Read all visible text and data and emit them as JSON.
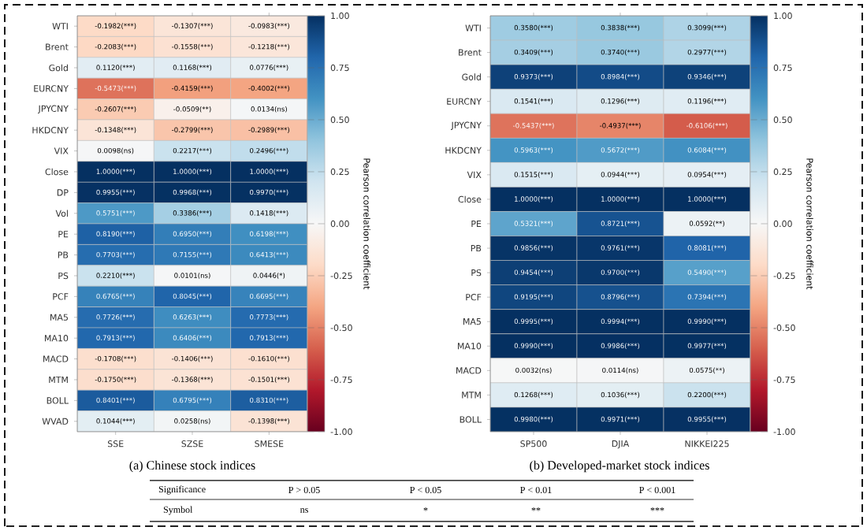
{
  "chart_data": [
    {
      "type": "heatmap",
      "categories": [
        "SSE",
        "SZSE",
        "SMESE"
      ],
      "y_categories": [
        "WTI",
        "Brent",
        "Gold",
        "EURCNY",
        "JPYCNY",
        "HKDCNY",
        "VIX",
        "Close",
        "DP",
        "Vol",
        "PE",
        "PB",
        "PS",
        "PCF",
        "MA5",
        "MA10",
        "MACD",
        "MTM",
        "BOLL",
        "WVAD"
      ],
      "cells": [
        [
          -0.1982,
          -0.1307,
          -0.0983
        ],
        [
          -0.2083,
          -0.1558,
          -0.1218
        ],
        [
          0.112,
          0.1168,
          0.0776
        ],
        [
          -0.5473,
          -0.4159,
          -0.4002
        ],
        [
          -0.2607,
          -0.0509,
          0.0134
        ],
        [
          -0.1348,
          -0.2799,
          -0.2989
        ],
        [
          0.0098,
          0.2217,
          0.2496
        ],
        [
          1.0,
          1.0,
          1.0
        ],
        [
          0.9955,
          0.9968,
          0.997
        ],
        [
          0.5751,
          0.3386,
          0.1418
        ],
        [
          0.819,
          0.695,
          0.6198
        ],
        [
          0.7703,
          0.7155,
          0.6413
        ],
        [
          0.221,
          0.0101,
          0.0446
        ],
        [
          0.6765,
          0.8045,
          0.6695
        ],
        [
          0.7726,
          0.6263,
          0.7773
        ],
        [
          0.7913,
          0.6406,
          0.7913
        ],
        [
          -0.1708,
          -0.1406,
          -0.161
        ],
        [
          -0.175,
          -0.1368,
          -0.1501
        ],
        [
          0.8401,
          0.6795,
          0.831
        ],
        [
          0.1044,
          0.0258,
          -0.1398
        ]
      ],
      "cell_labels": [
        [
          "-0.1982(***)",
          "-0.1307(***)",
          "-0.0983(***)"
        ],
        [
          "-0.2083(***)",
          "-0.1558(***)",
          "-0.1218(***)"
        ],
        [
          "0.1120(***)",
          "0.1168(***)",
          "0.0776(***)"
        ],
        [
          "-0.5473(***)",
          "-0.4159(***)",
          "-0.4002(***)"
        ],
        [
          "-0.2607(***)",
          "-0.0509(**)",
          "0.0134(ns)"
        ],
        [
          "-0.1348(***)",
          "-0.2799(***)",
          "-0.2989(***)"
        ],
        [
          "0.0098(ns)",
          "0.2217(***)",
          "0.2496(***)"
        ],
        [
          "1.0000(***)",
          "1.0000(***)",
          "1.0000(***)"
        ],
        [
          "0.9955(***)",
          "0.9968(***)",
          "0.9970(***)"
        ],
        [
          "0.5751(***)",
          "0.3386(***)",
          "0.1418(***)"
        ],
        [
          "0.8190(***)",
          "0.6950(***)",
          "0.6198(***)"
        ],
        [
          "0.7703(***)",
          "0.7155(***)",
          "0.6413(***)"
        ],
        [
          "0.2210(***)",
          "0.0101(ns)",
          "0.0446(*)"
        ],
        [
          "0.6765(***)",
          "0.8045(***)",
          "0.6695(***)"
        ],
        [
          "0.7726(***)",
          "0.6263(***)",
          "0.7773(***)"
        ],
        [
          "0.7913(***)",
          "0.6406(***)",
          "0.7913(***)"
        ],
        [
          "-0.1708(***)",
          "-0.1406(***)",
          "-0.1610(***)"
        ],
        [
          "-0.1750(***)",
          "-0.1368(***)",
          "-0.1501(***)"
        ],
        [
          "0.8401(***)",
          "0.6795(***)",
          "0.8310(***)"
        ],
        [
          "0.1044(***)",
          "0.0258(ns)",
          "-0.1398(***)"
        ]
      ],
      "clim": [
        -1,
        1
      ],
      "cticks": [
        {
          "value": -1,
          "label": "-1.00"
        },
        {
          "value": -0.75,
          "label": "-0.75"
        },
        {
          "value": -0.5,
          "label": "-0.50"
        },
        {
          "value": -0.25,
          "label": "-0.25"
        },
        {
          "value": 0,
          "label": "0.00"
        },
        {
          "value": 0.25,
          "label": "0.25"
        },
        {
          "value": 0.5,
          "label": "0.50"
        },
        {
          "value": 0.75,
          "label": "0.75"
        },
        {
          "value": 1,
          "label": "1.00"
        }
      ],
      "clabel": "Pearson correlation coefficient",
      "annotations": [
        "(a) Chinese stock indices"
      ]
    },
    {
      "type": "heatmap",
      "categories": [
        "SP500",
        "DJIA",
        "NIKKEI225"
      ],
      "y_categories": [
        "WTI",
        "Brent",
        "Gold",
        "EURCNY",
        "JPYCNY",
        "HKDCNY",
        "VIX",
        "Close",
        "PE",
        "PB",
        "PS",
        "PCF",
        "MA5",
        "MA10",
        "MACD",
        "MTM",
        "BOLL"
      ],
      "cells": [
        [
          0.358,
          0.3838,
          0.3099
        ],
        [
          0.3409,
          0.374,
          0.2977
        ],
        [
          0.9373,
          0.8984,
          0.9346
        ],
        [
          0.1541,
          0.1296,
          0.1196
        ],
        [
          -0.5437,
          -0.4937,
          -0.6106
        ],
        [
          0.5963,
          0.5672,
          0.6084
        ],
        [
          0.1515,
          0.0944,
          0.0954
        ],
        [
          1.0,
          1.0,
          1.0
        ],
        [
          0.5321,
          0.8721,
          0.0592
        ],
        [
          0.9856,
          0.9761,
          0.8081
        ],
        [
          0.9454,
          0.97,
          0.549
        ],
        [
          0.9195,
          0.8796,
          0.7394
        ],
        [
          0.9995,
          0.9994,
          0.999
        ],
        [
          0.999,
          0.9986,
          0.9977
        ],
        [
          0.0032,
          0.0114,
          0.0575
        ],
        [
          0.1268,
          0.1036,
          0.22
        ],
        [
          0.998,
          0.9971,
          0.9955
        ]
      ],
      "cell_labels": [
        [
          "0.3580(***)",
          "0.3838(***)",
          "0.3099(***)"
        ],
        [
          "0.3409(***)",
          "0.3740(***)",
          "0.2977(***)"
        ],
        [
          "0.9373(***)",
          "0.8984(***)",
          "0.9346(***)"
        ],
        [
          "0.1541(***)",
          "0.1296(***)",
          "0.1196(***)"
        ],
        [
          "-0.5437(***)",
          "-0.4937(***)",
          "-0.6106(***)"
        ],
        [
          "0.5963(***)",
          "0.5672(***)",
          "0.6084(***)"
        ],
        [
          "0.1515(***)",
          "0.0944(***)",
          "0.0954(***)"
        ],
        [
          "1.0000(***)",
          "1.0000(***)",
          "1.0000(***)"
        ],
        [
          "0.5321(***)",
          "0.8721(***)",
          "0.0592(**)"
        ],
        [
          "0.9856(***)",
          "0.9761(***)",
          "0.8081(***)"
        ],
        [
          "0.9454(***)",
          "0.9700(***)",
          "0.5490(***)"
        ],
        [
          "0.9195(***)",
          "0.8796(***)",
          "0.7394(***)"
        ],
        [
          "0.9995(***)",
          "0.9994(***)",
          "0.9990(***)"
        ],
        [
          "0.9990(***)",
          "0.9986(***)",
          "0.9977(***)"
        ],
        [
          "0.0032(ns)",
          "0.0114(ns)",
          "0.0575(**)"
        ],
        [
          "0.1268(***)",
          "0.1036(***)",
          "0.2200(***)"
        ],
        [
          "0.9980(***)",
          "0.9971(***)",
          "0.9955(***)"
        ]
      ],
      "clim": [
        -1,
        1
      ],
      "cticks": [
        {
          "value": -1,
          "label": "-1.00"
        },
        {
          "value": -0.75,
          "label": "-0.75"
        },
        {
          "value": -0.5,
          "label": "-0.50"
        },
        {
          "value": -0.25,
          "label": "-0.25"
        },
        {
          "value": 0,
          "label": "0.00"
        },
        {
          "value": 0.25,
          "label": "0.25"
        },
        {
          "value": 0.5,
          "label": "0.50"
        },
        {
          "value": 0.75,
          "label": "0.75"
        },
        {
          "value": 1,
          "label": "1.00"
        }
      ],
      "clabel": "Pearson correlation coefficient",
      "annotations": [
        "(b) Developed-market stock indices"
      ]
    },
    {
      "type": "other",
      "annotations": [
        "Significance",
        "P > 0.05",
        "P < 0.05",
        "P < 0.01",
        "P < 0.001",
        "Symbol",
        "ns",
        "*",
        "**",
        "***"
      ]
    }
  ]
}
